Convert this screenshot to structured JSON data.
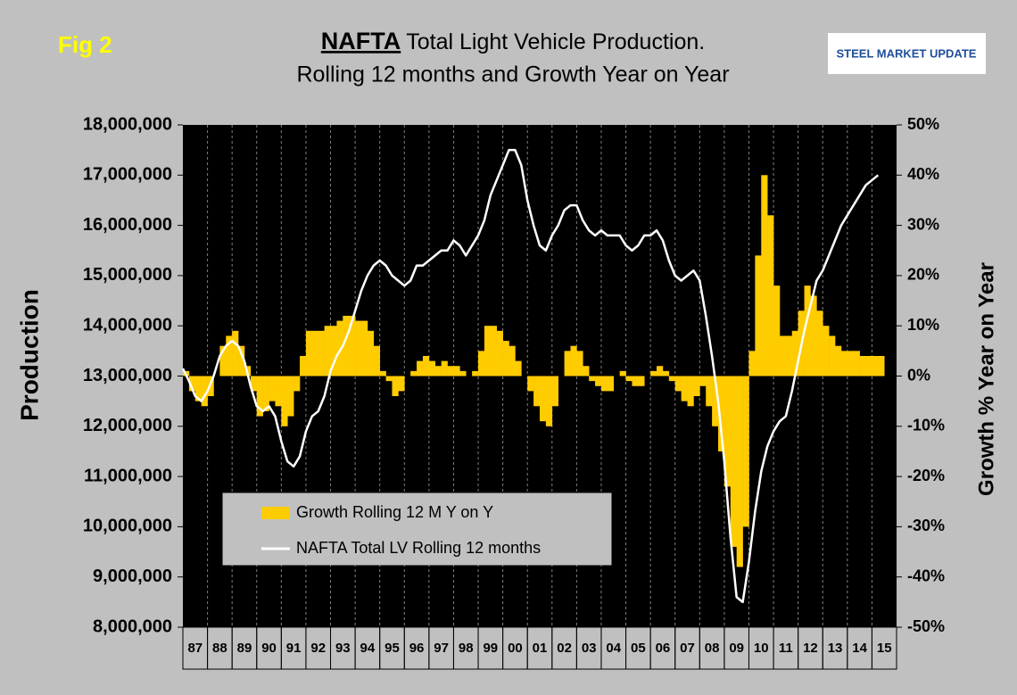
{
  "chart_data": {
    "type": "combo",
    "figure_label": "Fig 2",
    "title_parts": [
      "NAFTA",
      "Total Light Vehicle Production.",
      "Rolling 12 months and Growth Year on Year"
    ],
    "logo": "STEEL MARKET UPDATE",
    "ylabel": "Production",
    "y2label": "Growth % Year on Year",
    "ylim": [
      8000000,
      18000000
    ],
    "yticks": [
      {
        "value": 8000000,
        "label": "8,000,000"
      },
      {
        "value": 9000000,
        "label": "9,000,000"
      },
      {
        "value": 10000000,
        "label": "10,000,000"
      },
      {
        "value": 11000000,
        "label": "11,000,000"
      },
      {
        "value": 12000000,
        "label": "12,000,000"
      },
      {
        "value": 13000000,
        "label": "13,000,000"
      },
      {
        "value": 14000000,
        "label": "14,000,000"
      },
      {
        "value": 15000000,
        "label": "15,000,000"
      },
      {
        "value": 16000000,
        "label": "16,000,000"
      },
      {
        "value": 17000000,
        "label": "17,000,000"
      },
      {
        "value": 18000000,
        "label": "18,000,000"
      }
    ],
    "y2lim": [
      -50,
      50
    ],
    "y2ticks": [
      {
        "value": -50,
        "label": "-50%"
      },
      {
        "value": -40,
        "label": "-40%"
      },
      {
        "value": -30,
        "label": "-30%"
      },
      {
        "value": -20,
        "label": "-20%"
      },
      {
        "value": -10,
        "label": "-10%"
      },
      {
        "value": 0,
        "label": "0%"
      },
      {
        "value": 10,
        "label": "10%"
      },
      {
        "value": 20,
        "label": "20%"
      },
      {
        "value": 30,
        "label": "30%"
      },
      {
        "value": 40,
        "label": "40%"
      },
      {
        "value": 50,
        "label": "50%"
      }
    ],
    "xlim": [
      1987,
      2016
    ],
    "xticks": [
      {
        "value": 1987,
        "label": "87"
      },
      {
        "value": 1988,
        "label": "88"
      },
      {
        "value": 1989,
        "label": "89"
      },
      {
        "value": 1990,
        "label": "90"
      },
      {
        "value": 1991,
        "label": "91"
      },
      {
        "value": 1992,
        "label": "92"
      },
      {
        "value": 1993,
        "label": "93"
      },
      {
        "value": 1994,
        "label": "94"
      },
      {
        "value": 1995,
        "label": "95"
      },
      {
        "value": 1996,
        "label": "96"
      },
      {
        "value": 1997,
        "label": "97"
      },
      {
        "value": 1998,
        "label": "98"
      },
      {
        "value": 1999,
        "label": "99"
      },
      {
        "value": 2000,
        "label": "00"
      },
      {
        "value": 2001,
        "label": "01"
      },
      {
        "value": 2002,
        "label": "02"
      },
      {
        "value": 2003,
        "label": "03"
      },
      {
        "value": 2004,
        "label": "04"
      },
      {
        "value": 2005,
        "label": "05"
      },
      {
        "value": 2006,
        "label": "06"
      },
      {
        "value": 2007,
        "label": "07"
      },
      {
        "value": 2008,
        "label": "08"
      },
      {
        "value": 2009,
        "label": "09"
      },
      {
        "value": 2010,
        "label": "10"
      },
      {
        "value": 2011,
        "label": "11"
      },
      {
        "value": 2012,
        "label": "12"
      },
      {
        "value": 2013,
        "label": "13"
      },
      {
        "value": 2014,
        "label": "14"
      },
      {
        "value": 2015,
        "label": "15"
      }
    ],
    "grid": "x",
    "x": [
      1987,
      1987.25,
      1987.5,
      1987.75,
      1988,
      1988.25,
      1988.5,
      1988.75,
      1989,
      1989.25,
      1989.5,
      1989.75,
      1990,
      1990.25,
      1990.5,
      1990.75,
      1991,
      1991.25,
      1991.5,
      1991.75,
      1992,
      1992.25,
      1992.5,
      1992.75,
      1993,
      1993.25,
      1993.5,
      1993.75,
      1994,
      1994.25,
      1994.5,
      1994.75,
      1995,
      1995.25,
      1995.5,
      1995.75,
      1996,
      1996.25,
      1996.5,
      1996.75,
      1997,
      1997.25,
      1997.5,
      1997.75,
      1998,
      1998.25,
      1998.5,
      1998.75,
      1999,
      1999.25,
      1999.5,
      1999.75,
      2000,
      2000.25,
      2000.5,
      2000.75,
      2001,
      2001.25,
      2001.5,
      2001.75,
      2002,
      2002.25,
      2002.5,
      2002.75,
      2003,
      2003.25,
      2003.5,
      2003.75,
      2004,
      2004.25,
      2004.5,
      2004.75,
      2005,
      2005.25,
      2005.5,
      2005.75,
      2006,
      2006.25,
      2006.5,
      2006.75,
      2007,
      2007.25,
      2007.5,
      2007.75,
      2008,
      2008.25,
      2008.5,
      2008.75,
      2009,
      2009.25,
      2009.5,
      2009.75,
      2010,
      2010.25,
      2010.5,
      2010.75,
      2011,
      2011.25,
      2011.5,
      2011.75,
      2012,
      2012.25,
      2012.5,
      2012.75,
      2013,
      2013.25,
      2013.5,
      2013.75,
      2014,
      2014.25,
      2014.5,
      2014.75,
      2015,
      2015.25
    ],
    "series": [
      {
        "name": "Growth Rolling 12 M Y on Y",
        "type": "bar",
        "axis": "y2",
        "color": "#ffcc00",
        "values": [
          1,
          -3,
          -5,
          -6,
          -4,
          0,
          6,
          8,
          9,
          6,
          2,
          -3,
          -8,
          -7,
          -5,
          -6,
          -10,
          -8,
          -3,
          4,
          9,
          9,
          9,
          10,
          10,
          11,
          12,
          12,
          11,
          11,
          9,
          6,
          1,
          -1,
          -4,
          -3,
          0,
          1,
          3,
          4,
          3,
          2,
          3,
          2,
          2,
          1,
          0,
          1,
          5,
          10,
          10,
          9,
          7,
          6,
          3,
          0,
          -3,
          -6,
          -9,
          -10,
          -6,
          0,
          5,
          6,
          5,
          2,
          -1,
          -2,
          -3,
          -3,
          0,
          1,
          -1,
          -2,
          -2,
          0,
          1,
          2,
          1,
          -1,
          -3,
          -5,
          -6,
          -4,
          -2,
          -6,
          -10,
          -15,
          -22,
          -34,
          -38,
          -30,
          5,
          24,
          40,
          32,
          18,
          8,
          8,
          9,
          13,
          18,
          16,
          13,
          10,
          8,
          6,
          5,
          5,
          5,
          4,
          4,
          4,
          4
        ]
      },
      {
        "name": "NAFTA Total LV Rolling 12 months",
        "type": "line",
        "color": "#ffffff",
        "values": [
          13150000,
          12900000,
          12600000,
          12500000,
          12700000,
          13000000,
          13400000,
          13600000,
          13700000,
          13600000,
          13300000,
          12800000,
          12400000,
          12300000,
          12400000,
          12200000,
          11700000,
          11300000,
          11200000,
          11400000,
          11900000,
          12200000,
          12300000,
          12600000,
          13100000,
          13400000,
          13600000,
          13900000,
          14300000,
          14700000,
          15000000,
          15200000,
          15300000,
          15200000,
          15000000,
          14900000,
          14800000,
          14900000,
          15200000,
          15200000,
          15300000,
          15400000,
          15500000,
          15500000,
          15700000,
          15600000,
          15400000,
          15600000,
          15800000,
          16100000,
          16600000,
          16900000,
          17200000,
          17500000,
          17500000,
          17200000,
          16500000,
          16000000,
          15600000,
          15500000,
          15800000,
          16000000,
          16300000,
          16400000,
          16400000,
          16100000,
          15900000,
          15800000,
          15900000,
          15800000,
          15800000,
          15800000,
          15600000,
          15500000,
          15600000,
          15800000,
          15800000,
          15900000,
          15700000,
          15300000,
          15000000,
          14900000,
          15000000,
          15100000,
          14900000,
          14200000,
          13400000,
          12500000,
          11300000,
          9800000,
          8600000,
          8500000,
          9300000,
          10300000,
          11100000,
          11600000,
          11900000,
          12100000,
          12200000,
          12700000,
          13300000,
          13900000,
          14400000,
          14900000,
          15100000,
          15400000,
          15700000,
          16000000,
          16200000,
          16400000,
          16600000,
          16800000,
          16900000,
          17000000
        ]
      }
    ]
  }
}
